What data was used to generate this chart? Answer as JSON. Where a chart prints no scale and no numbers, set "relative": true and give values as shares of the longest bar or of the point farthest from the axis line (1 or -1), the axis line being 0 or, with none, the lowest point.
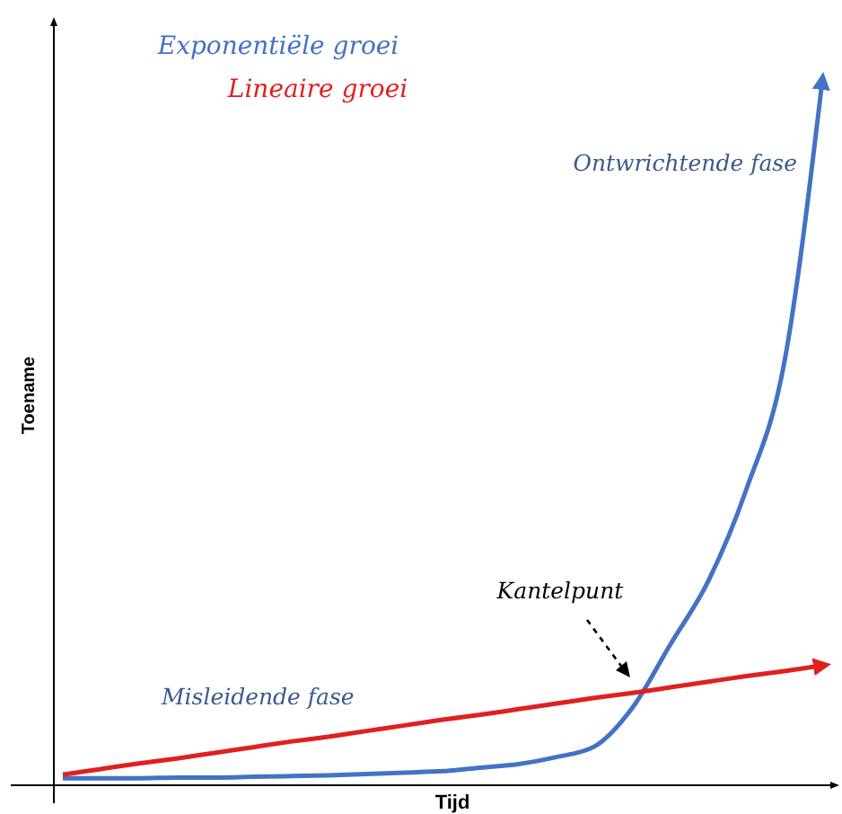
{
  "chart_data": {
    "type": "line",
    "relative": true,
    "xlabel": "Tijd",
    "ylabel": "Toename",
    "legend": "top left",
    "marker": "none",
    "line_style": "solid",
    "grid": false,
    "categories": [
      null,
      null,
      null,
      null,
      null,
      null,
      null,
      null,
      null,
      null,
      null,
      null,
      null,
      null,
      null,
      null,
      null,
      null,
      null,
      null,
      null
    ],
    "series": [
      {
        "name": "Exponentiële groei",
        "color": "#4472c4",
        "values": [
          0.01,
          0.01,
          0.01,
          0.011,
          0.011,
          0.012,
          0.013,
          0.014,
          0.016,
          0.018,
          0.02,
          0.025,
          0.03,
          0.04,
          0.055,
          0.11,
          0.2,
          0.29,
          0.42,
          0.6,
          1.0
        ]
      },
      {
        "name": "Lineaire groei",
        "color": "#e02020",
        "values": [
          0.015,
          0.023,
          0.031,
          0.038,
          0.046,
          0.054,
          0.062,
          0.069,
          0.077,
          0.085,
          0.093,
          0.1,
          0.108,
          0.116,
          0.124,
          0.131,
          0.139,
          0.147,
          0.155,
          0.162,
          0.17
        ]
      }
    ],
    "annotations": [
      "Ontwrichtende fase",
      "Kantelpunt",
      "Misleidende fase"
    ]
  }
}
